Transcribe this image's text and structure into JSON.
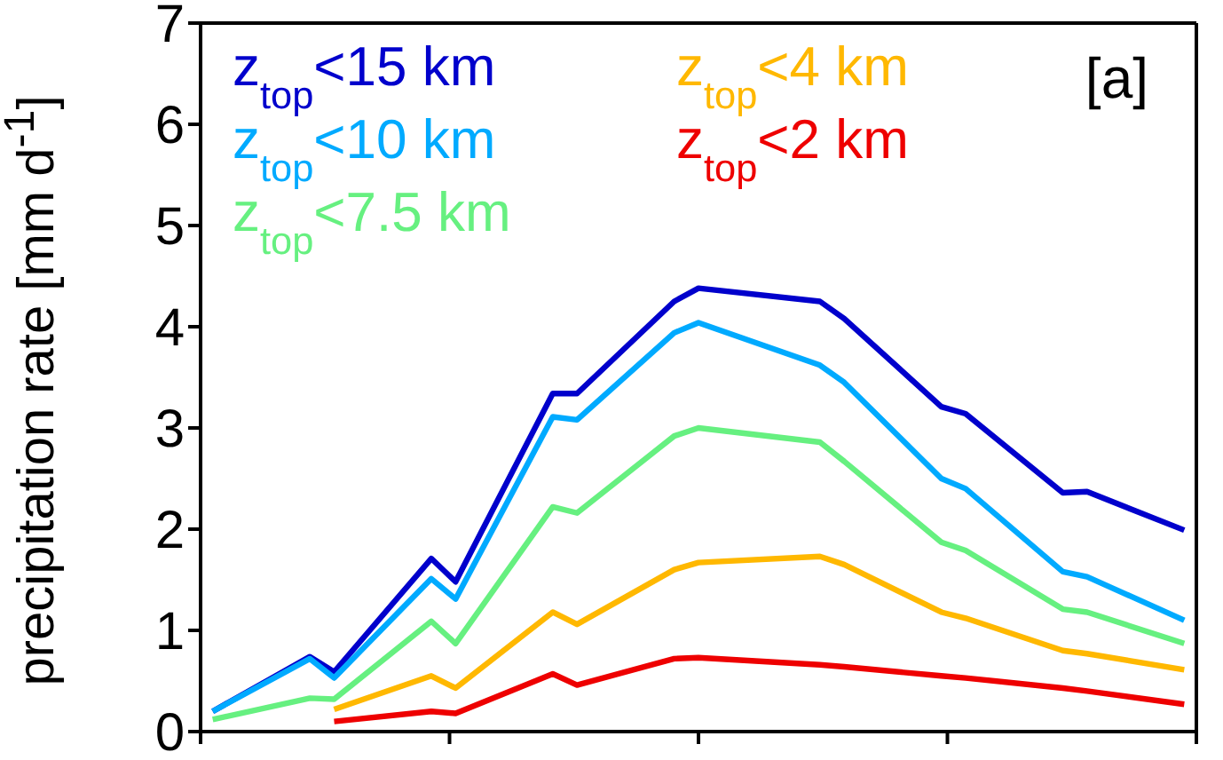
{
  "chart_data": {
    "type": "line",
    "ylabel": "precipitation rate [mm d$^{-1}$]",
    "annotations": [
      "[a]"
    ],
    "categories": [
      null,
      null,
      null,
      null,
      null,
      null,
      null,
      null,
      null,
      null,
      null,
      null,
      null,
      null,
      null,
      null,
      null,
      null,
      null,
      null,
      null,
      null,
      null,
      null,
      null,
      null,
      null,
      null,
      null,
      null,
      null,
      null,
      null,
      null,
      null,
      null,
      null,
      null,
      null,
      null,
      null
    ],
    "ylim": [
      0,
      7
    ],
    "yticks": [
      0,
      1,
      2,
      3,
      4,
      5,
      6,
      7
    ],
    "tick_labels": "y",
    "grid": false,
    "legend": "top left",
    "marker": "none",
    "line_style": "solid",
    "series": [
      {
        "name": "z$_{top}$<15 km",
        "color": "#0000cc",
        "values": [
          0.2,
          null,
          null,
          null,
          0.74,
          0.59,
          null,
          null,
          null,
          1.71,
          1.48,
          null,
          null,
          null,
          3.34,
          3.34,
          null,
          null,
          null,
          4.25,
          4.38,
          null,
          null,
          null,
          null,
          4.25,
          4.08,
          null,
          null,
          null,
          3.21,
          3.14,
          null,
          null,
          null,
          2.36,
          2.37,
          null,
          null,
          null,
          1.99
        ]
      },
      {
        "name": "z$_{top}$<10 km",
        "color": "#00aaff",
        "values": [
          0.2,
          null,
          null,
          null,
          0.72,
          0.53,
          null,
          null,
          null,
          1.51,
          1.31,
          null,
          null,
          null,
          3.11,
          3.08,
          null,
          null,
          null,
          3.94,
          4.04,
          null,
          null,
          null,
          null,
          3.62,
          3.45,
          null,
          null,
          null,
          2.5,
          2.4,
          null,
          null,
          null,
          1.58,
          1.53,
          null,
          null,
          null,
          1.1
        ]
      },
      {
        "name": "z$_{top}$<7.5 km",
        "color": "#66f080",
        "values": [
          0.12,
          null,
          null,
          null,
          0.33,
          0.32,
          null,
          null,
          null,
          1.09,
          0.87,
          null,
          null,
          null,
          2.22,
          2.16,
          null,
          null,
          null,
          2.92,
          3.0,
          null,
          null,
          null,
          null,
          2.86,
          2.67,
          null,
          null,
          null,
          1.87,
          1.79,
          null,
          null,
          null,
          1.21,
          1.18,
          null,
          null,
          null,
          0.87
        ]
      },
      {
        "name": "z$_{top}$<4 km",
        "color": "#ffb800",
        "values": [
          null,
          null,
          null,
          null,
          null,
          0.22,
          null,
          null,
          null,
          0.55,
          0.43,
          null,
          null,
          null,
          1.18,
          1.06,
          null,
          null,
          null,
          1.6,
          1.67,
          null,
          null,
          null,
          null,
          1.73,
          1.65,
          null,
          null,
          null,
          1.18,
          1.12,
          null,
          null,
          null,
          0.8,
          0.77,
          null,
          null,
          null,
          0.61
        ]
      },
      {
        "name": "z$_{top}$<2 km",
        "color": "#ee0000",
        "values": [
          null,
          null,
          null,
          null,
          null,
          0.1,
          null,
          null,
          null,
          0.2,
          0.18,
          null,
          null,
          null,
          0.57,
          0.46,
          null,
          null,
          null,
          0.72,
          0.73,
          null,
          null,
          null,
          null,
          0.66,
          0.64,
          null,
          null,
          null,
          0.55,
          0.53,
          null,
          null,
          null,
          0.43,
          0.4,
          null,
          null,
          null,
          0.27
        ]
      }
    ]
  }
}
